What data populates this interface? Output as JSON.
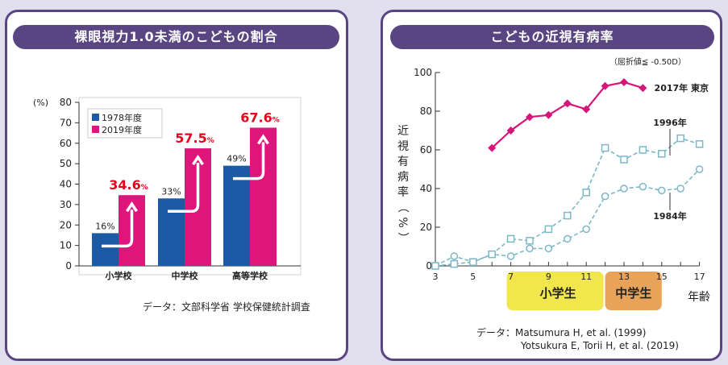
{
  "left_panel": {
    "title": "裸眼視力1.0未満のこどもの割合",
    "source": "データ：文部科学省 学校保健統計調査"
  },
  "right_panel": {
    "title": "こどもの近視有病率",
    "source_label": "データ：",
    "source_line1": "Matsumura H, et al. (1999)",
    "source_line2": "Yotsukura E, Torii H, et al. (2019)"
  },
  "colors": {
    "panel_border": "#5a4583",
    "bar_1978": "#1c5aa6",
    "bar_2019": "#e0157c",
    "highlight_red": "#e4061d",
    "line_2017": "#d6157a",
    "line_old": "#7cb8c8",
    "elementary_band": "#f1e64c",
    "junior_band": "#e7a35a"
  },
  "chart_data": [
    {
      "type": "bar",
      "ylabel": "(%)",
      "ylim": [
        0,
        80
      ],
      "yticks": [
        0,
        10,
        20,
        30,
        40,
        50,
        60,
        70,
        80
      ],
      "grid": false,
      "legend_position": "top-left",
      "categories": [
        "小学校",
        "中学校",
        "高等学校"
      ],
      "series": [
        {
          "name": "1978年度",
          "values": [
            16,
            33,
            49
          ],
          "labels": [
            "16%",
            "33%",
            "49%"
          ]
        },
        {
          "name": "2019年度",
          "values": [
            34.6,
            57.5,
            67.6
          ],
          "labels": [
            "34.6",
            "57.5",
            "67.6"
          ],
          "label_unit": "%"
        }
      ]
    },
    {
      "type": "line",
      "note": "（屈折値≦ -0.50D）",
      "ylabel": "近視有病率（%）",
      "xlabel": "年齢",
      "ylim": [
        0,
        100
      ],
      "xlim": [
        3,
        17
      ],
      "yticks": [
        0,
        20,
        40,
        60,
        80,
        100
      ],
      "xticks": [
        3,
        5,
        7,
        9,
        11,
        13,
        15,
        17
      ],
      "grid": false,
      "bands": [
        {
          "label": "小学生",
          "from": 7,
          "to": 12
        },
        {
          "label": "中学生",
          "from": 12,
          "to": 15
        }
      ],
      "series": [
        {
          "name": "2017年 東京",
          "x": [
            6,
            7,
            8,
            9,
            10,
            11,
            12,
            13,
            14
          ],
          "y": [
            61,
            70,
            77,
            78,
            84,
            81,
            93,
            95,
            92
          ]
        },
        {
          "name": "1996年",
          "x": [
            3,
            4,
            5,
            6,
            7,
            8,
            9,
            10,
            11,
            12,
            13,
            14,
            15,
            16,
            17
          ],
          "y": [
            0,
            1,
            2,
            6,
            14,
            13,
            19,
            26,
            38,
            61,
            55,
            60,
            58,
            66,
            63
          ]
        },
        {
          "name": "1984年",
          "x": [
            3,
            4,
            5,
            6,
            7,
            8,
            9,
            10,
            11,
            12,
            13,
            14,
            15,
            16,
            17
          ],
          "y": [
            0,
            5,
            2,
            6,
            5,
            9,
            9,
            14,
            19,
            36,
            40,
            41,
            39,
            40,
            50
          ]
        }
      ]
    }
  ]
}
